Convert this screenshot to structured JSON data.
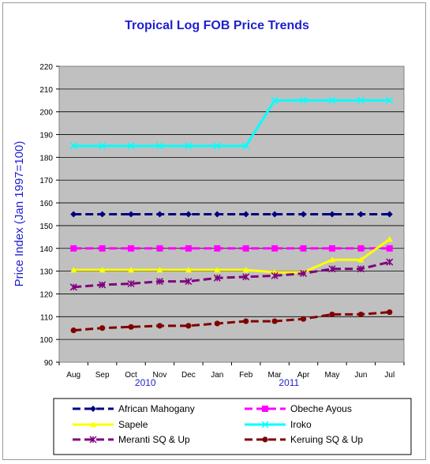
{
  "chart_data": {
    "type": "line",
    "title": "Tropical Log FOB Price Trends",
    "ylabel": "Price Index (Jan 1997=100)",
    "xlabel": "",
    "ylim": [
      90,
      220
    ],
    "ytick_step": 10,
    "grid": true,
    "legend_position": "bottom",
    "categories": [
      "Aug",
      "Sep",
      "Oct",
      "Nov",
      "Dec",
      "Jan",
      "Feb",
      "Mar",
      "Apr",
      "May",
      "Jun",
      "Jul"
    ],
    "year_labels": [
      {
        "text": "2010",
        "at": "Oct-Nov"
      },
      {
        "text": "2011",
        "at": "Mar-Apr"
      }
    ],
    "series": [
      {
        "name": "African Mahogany",
        "color": "#000080",
        "marker": "diamond",
        "dash": "dashed",
        "values": [
          155,
          155,
          155,
          155,
          155,
          155,
          155,
          155,
          155,
          155,
          155,
          155
        ]
      },
      {
        "name": "Obeche Ayous",
        "color": "#ff00ff",
        "marker": "square",
        "dash": "dashed",
        "values": [
          140,
          140,
          140,
          140,
          140,
          140,
          140,
          140,
          140,
          140,
          140,
          140
        ]
      },
      {
        "name": "Sapele",
        "color": "#ffff00",
        "marker": "triangle",
        "dash": "solid",
        "values": [
          130.5,
          130.5,
          130.5,
          130.5,
          130.5,
          130.5,
          130.5,
          129.5,
          129.5,
          135,
          135,
          144
        ]
      },
      {
        "name": "Iroko",
        "color": "#00ffff",
        "marker": "x",
        "dash": "solid",
        "values": [
          185,
          185,
          185,
          185,
          185,
          185,
          185,
          205,
          205,
          205,
          205,
          205
        ]
      },
      {
        "name": "Meranti SQ & Up",
        "color": "#800080",
        "marker": "star",
        "dash": "dashed",
        "values": [
          123,
          124,
          124.5,
          125.5,
          125.5,
          127,
          127.5,
          128,
          129,
          131,
          131,
          134
        ]
      },
      {
        "name": "Keruing SQ & Up",
        "color": "#800000",
        "marker": "circle",
        "dash": "dashed",
        "values": [
          104,
          105,
          105.5,
          106,
          106,
          107,
          108,
          108,
          109,
          111,
          111,
          112
        ]
      }
    ]
  }
}
